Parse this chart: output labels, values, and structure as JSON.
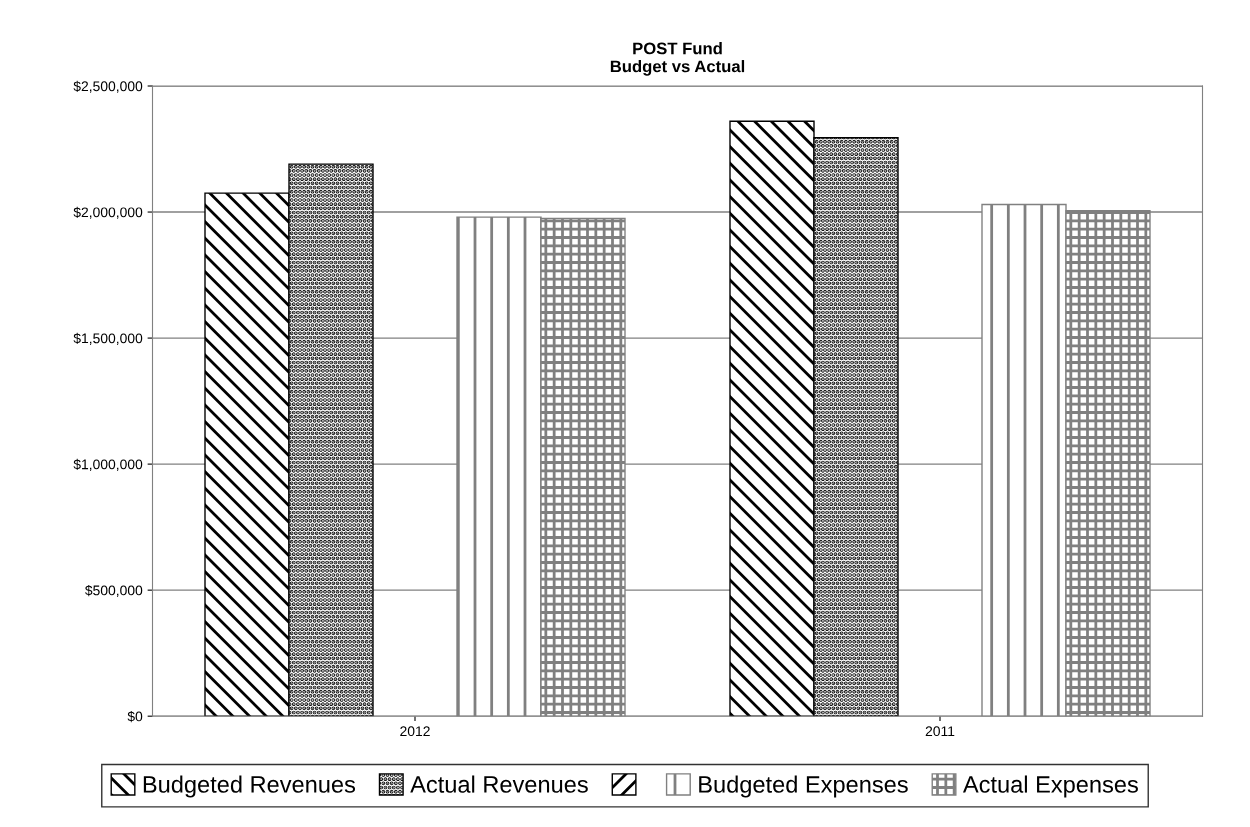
{
  "chart_data": {
    "type": "bar",
    "title": "POST Fund\nBudget vs Actual",
    "categories": [
      "2012",
      "2011"
    ],
    "series": [
      {
        "name": "Budgeted Revenues",
        "color": "#000000",
        "values": [
          2075000,
          2360000
        ]
      },
      {
        "name": "Actual Revenues",
        "color": "#000000",
        "values": [
          2190000,
          2295000
        ]
      },
      {
        "color": "#000000",
        "values": [
          null,
          null
        ]
      },
      {
        "name": "Budgeted Expenses",
        "color": "#808080",
        "values": [
          1980000,
          2030000
        ]
      },
      {
        "name": "Actual Expenses",
        "color": "#808080",
        "values": [
          1975000,
          2005000
        ]
      }
    ],
    "ylim": [
      0,
      2500000
    ],
    "yticks": [
      {
        "value": 0,
        "label": "$0"
      },
      {
        "value": 500000,
        "label": "$500,000"
      },
      {
        "value": 1000000,
        "label": "$1,000,000"
      },
      {
        "value": 1500000,
        "label": "$1,500,000"
      },
      {
        "value": 2000000,
        "label": "$2,000,000"
      },
      {
        "value": 2500000,
        "label": "$2,500,000"
      }
    ],
    "grid": "y",
    "legend": "bottom"
  }
}
